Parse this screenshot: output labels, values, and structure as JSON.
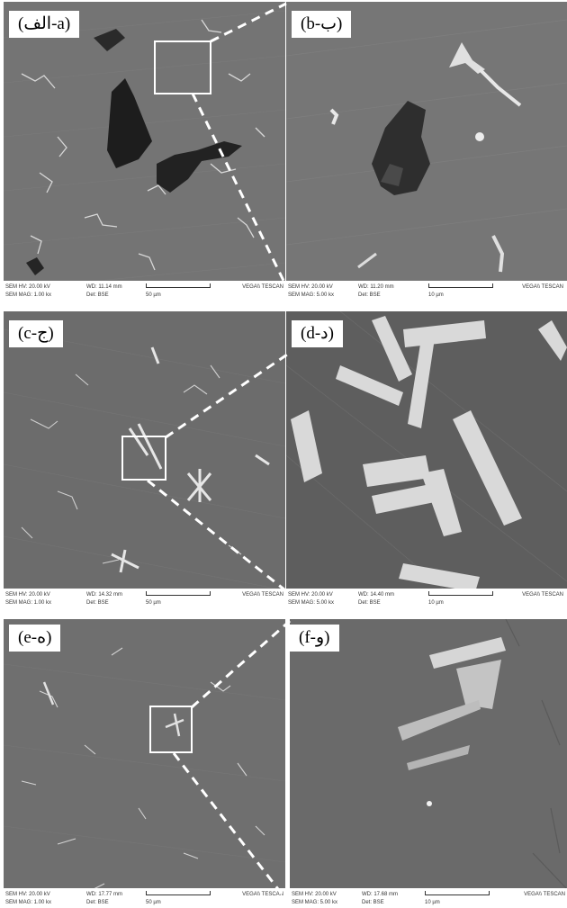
{
  "panels": [
    {
      "id": "a",
      "label": "(الف-a)",
      "sem_hv": "SEM HV: 20.00 kV",
      "wd": "WD: 11.14 mm",
      "sem_mag": "SEM MAG: 1.00 kx",
      "det": "Det: BSE",
      "scale": "50 µm",
      "brand": "VEGA\\\\ TESCAN"
    },
    {
      "id": "b",
      "label": "(b-ب)",
      "sem_hv": "SEM HV: 20.00 kV",
      "wd": "WD: 11.20 mm",
      "sem_mag": "SEM MAG: 5.00 kx",
      "det": "Det: BSE",
      "scale": "10 µm",
      "brand": "VEGA\\\\ TESCAN"
    },
    {
      "id": "c",
      "label": "(c-ج)",
      "sem_hv": "SEM HV: 20.00 kV",
      "wd": "WD: 14.32 mm",
      "sem_mag": "SEM MAG: 1.00 kx",
      "det": "Det: BSE",
      "scale": "50 µm",
      "brand": "VEGA\\\\ TESCAN"
    },
    {
      "id": "d",
      "label": "(d-د)",
      "sem_hv": "SEM HV: 20.00 kV",
      "wd": "WD: 14.40 mm",
      "sem_mag": "SEM MAG: 5.00 kx",
      "det": "Det: BSE",
      "scale": "10 µm",
      "brand": "VEGA\\\\ TESCAN"
    },
    {
      "id": "e",
      "label": "(e-ه)",
      "sem_hv": "SEM HV: 20.00 kV",
      "wd": "WD: 17.77 mm",
      "sem_mag": "SEM MAG: 1.00 kx",
      "det": "Det: BSE",
      "scale": "50 µm",
      "brand": "VEGA\\\\ TESCAN"
    },
    {
      "id": "f",
      "label": "(f-و)",
      "sem_hv": "SEM HV: 20.00 kV",
      "wd": "WD: 17.68 mm",
      "sem_mag": "SEM MAG: 5.00 kx",
      "det": "Det: BSE",
      "scale": "10 µm",
      "brand": "VEGA\\\\ TESCAN"
    }
  ],
  "colors": {
    "zoom_frame": "#2f7fc1",
    "guide_lines": "#ffffff",
    "background_gray": "#6e6e6e"
  }
}
